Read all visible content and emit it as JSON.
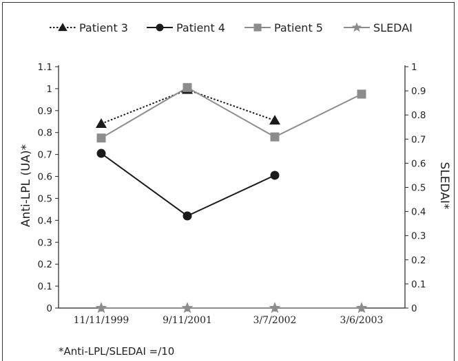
{
  "chart_data": {
    "type": "line",
    "categories": [
      "11/11/1999",
      "9/11/2001",
      "3/7/2002",
      "3/6/2003"
    ],
    "ylabel_left": "Anti-LPL (UA)*",
    "ylabel_right": "SLEDAI*",
    "ylim_left": [
      0,
      1.1
    ],
    "yticks_left": [
      "0",
      "0.1",
      "0.2",
      "0.3",
      "0.4",
      "0.5",
      "0.6",
      "0.7",
      "0.8",
      "0.9",
      "1",
      "1.1"
    ],
    "ylim_right": [
      0,
      1
    ],
    "yticks_right": [
      "0",
      "0.1",
      "0.2",
      "0.3",
      "0.4",
      "0.5",
      "0.6",
      "0.7",
      "0.8",
      "0.9",
      "1"
    ],
    "series": [
      {
        "name": "Patient 3",
        "axis": "left",
        "values": [
          0.84,
          0.995,
          0.855,
          null
        ],
        "color": "#1a1a1a",
        "dash": "dotted",
        "marker": "triangle"
      },
      {
        "name": "Patient 4",
        "axis": "left",
        "values": [
          0.705,
          0.42,
          0.605,
          null
        ],
        "color": "#1a1a1a",
        "dash": "solid",
        "marker": "circle"
      },
      {
        "name": "Patient 5",
        "axis": "left",
        "values": [
          0.775,
          1.005,
          0.78,
          0.975
        ],
        "color": "#8c8c8c",
        "dash": "solid",
        "marker": "square"
      },
      {
        "name": "SLEDAI",
        "axis": "right",
        "values": [
          0,
          0,
          0,
          0
        ],
        "color": "#8c8c8c",
        "dash": "solid",
        "marker": "star"
      }
    ],
    "footnote": "*Anti-LPL/SLEDAI =/10",
    "legend_position": "top",
    "grid": false
  }
}
